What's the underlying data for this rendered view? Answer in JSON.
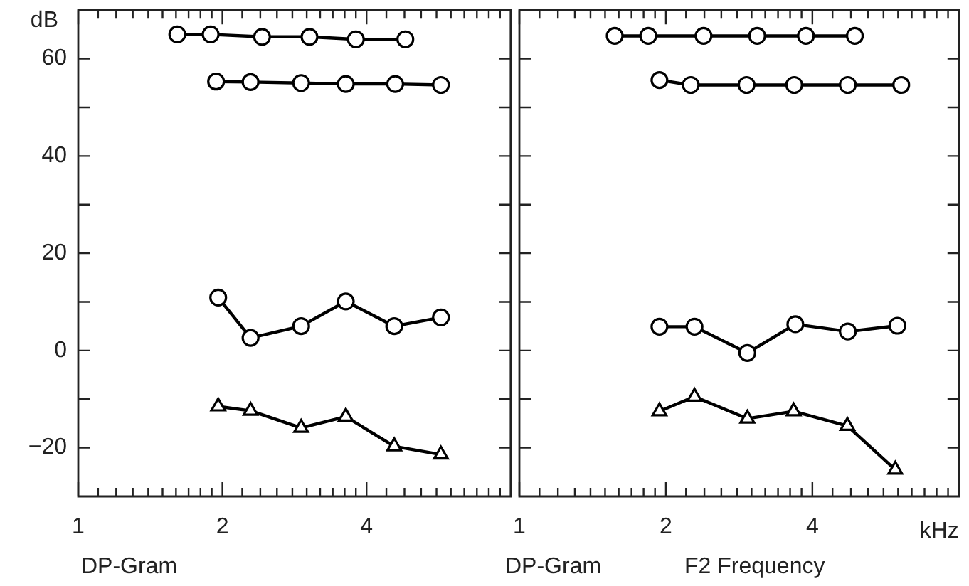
{
  "chart_data": [
    {
      "type": "line",
      "ylabel": "dB",
      "xlabel": "DP-Gram",
      "log": "x",
      "xlim": [
        1,
        8
      ],
      "ylim": [
        -30,
        70
      ],
      "xticks": [
        1,
        {
          "value": 1.1,
          "label": null
        },
        {
          "value": 1.2,
          "label": null
        },
        {
          "value": 1.3,
          "label": null
        },
        {
          "value": 1.4,
          "label": null
        },
        {
          "value": 1.5,
          "label": null
        },
        {
          "value": 1.6,
          "label": null
        },
        {
          "value": 1.7,
          "label": null
        },
        {
          "value": 1.8,
          "label": null
        },
        {
          "value": 1.9,
          "label": null
        },
        2,
        {
          "value": 2.2,
          "label": null
        },
        {
          "value": 2.4,
          "label": null
        },
        {
          "value": 2.6,
          "label": null
        },
        {
          "value": 2.8,
          "label": null
        },
        {
          "value": 3,
          "label": null
        },
        {
          "value": 3.2,
          "label": null
        },
        {
          "value": 3.4,
          "label": null
        },
        {
          "value": 3.6,
          "label": null
        },
        {
          "value": 3.8,
          "label": null
        },
        4,
        {
          "value": 4.4,
          "label": null
        },
        {
          "value": 4.8,
          "label": null
        },
        {
          "value": 5.2,
          "label": null
        },
        {
          "value": 5.6,
          "label": null
        },
        {
          "value": 6,
          "label": null
        },
        {
          "value": 6.4,
          "label": null
        },
        {
          "value": 6.8,
          "label": null
        },
        {
          "value": 7.2,
          "label": null
        },
        {
          "value": 7.6,
          "label": null
        }
      ],
      "yticks": [
        -20,
        {
          "value": -10,
          "label": null
        },
        0,
        {
          "value": 10,
          "label": null
        },
        20,
        {
          "value": 30,
          "label": null
        },
        40,
        {
          "value": 50,
          "label": null
        },
        60
      ],
      "line_style": "solid",
      "series": [
        {
          "color": "#000000",
          "marker": "circle",
          "x": [
            1.61,
            1.89,
            2.42,
            3.04,
            3.8,
            4.82
          ],
          "values": [
            65,
            65,
            64.5,
            64.5,
            64,
            64
          ]
        },
        {
          "color": "#000000",
          "marker": "circle",
          "x": [
            1.94,
            2.29,
            2.92,
            3.62,
            4.59,
            5.72
          ],
          "values": [
            55.3,
            55.2,
            55,
            54.8,
            54.8,
            54.6
          ]
        },
        {
          "color": "#000000",
          "marker": "circle",
          "x": [
            1.96,
            2.29,
            2.92,
            3.62,
            4.57,
            5.72
          ],
          "values": [
            10.9,
            2.6,
            5,
            10.1,
            5,
            6.8
          ]
        },
        {
          "color": "#000000",
          "marker": "triangle",
          "x": [
            1.96,
            2.29,
            2.92,
            3.62,
            4.57,
            5.72
          ],
          "values": [
            -11.5,
            -12.4,
            -15.9,
            -13.6,
            -19.7,
            -21.4
          ]
        }
      ]
    },
    {
      "type": "line",
      "xlabel": "F2 Frequency",
      "annotations": [
        "DP-Gram",
        "kHz"
      ],
      "log": "x",
      "xlim": [
        1,
        8
      ],
      "ylim": [
        -30,
        70
      ],
      "tick_labels": "x",
      "xticks": [
        1,
        {
          "value": 1.1,
          "label": null
        },
        {
          "value": 1.2,
          "label": null
        },
        {
          "value": 1.3,
          "label": null
        },
        {
          "value": 1.4,
          "label": null
        },
        {
          "value": 1.5,
          "label": null
        },
        {
          "value": 1.6,
          "label": null
        },
        {
          "value": 1.7,
          "label": null
        },
        {
          "value": 1.8,
          "label": null
        },
        {
          "value": 1.9,
          "label": null
        },
        2,
        {
          "value": 2.2,
          "label": null
        },
        {
          "value": 2.4,
          "label": null
        },
        {
          "value": 2.6,
          "label": null
        },
        {
          "value": 2.8,
          "label": null
        },
        {
          "value": 3,
          "label": null
        },
        {
          "value": 3.2,
          "label": null
        },
        {
          "value": 3.4,
          "label": null
        },
        {
          "value": 3.6,
          "label": null
        },
        {
          "value": 3.8,
          "label": null
        },
        4,
        {
          "value": 4.4,
          "label": null
        },
        {
          "value": 4.8,
          "label": null
        },
        {
          "value": 5.2,
          "label": null
        },
        {
          "value": 5.6,
          "label": null
        },
        {
          "value": 6,
          "label": null
        },
        {
          "value": 6.4,
          "label": null
        },
        {
          "value": 6.8,
          "label": null
        },
        {
          "value": 7.2,
          "label": null
        },
        {
          "value": 7.6,
          "label": null
        }
      ],
      "yticks": [
        -20,
        {
          "value": -10,
          "label": null
        },
        0,
        {
          "value": 10,
          "label": null
        },
        20,
        {
          "value": 30,
          "label": null
        },
        40,
        {
          "value": 50,
          "label": null
        },
        60
      ],
      "line_style": "solid",
      "series": [
        {
          "color": "#000000",
          "marker": "circle",
          "x": [
            1.57,
            1.84,
            2.39,
            3.08,
            3.88,
            4.89
          ],
          "values": [
            64.7,
            64.7,
            64.7,
            64.7,
            64.7,
            64.7
          ]
        },
        {
          "color": "#000000",
          "marker": "circle",
          "x": [
            1.94,
            2.25,
            2.93,
            3.67,
            4.73,
            6.09
          ],
          "values": [
            55.6,
            54.6,
            54.6,
            54.6,
            54.6,
            54.6
          ]
        },
        {
          "color": "#000000",
          "marker": "circle",
          "x": [
            1.94,
            2.29,
            2.94,
            3.69,
            4.73,
            5.98
          ],
          "values": [
            4.9,
            4.9,
            -0.5,
            5.4,
            3.9,
            5.1
          ]
        },
        {
          "color": "#000000",
          "marker": "triangle",
          "x": [
            1.94,
            2.29,
            2.94,
            3.66,
            4.72,
            5.92
          ],
          "values": [
            -12.5,
            -9.5,
            -14,
            -12.5,
            -15.5,
            -24.5
          ]
        }
      ]
    }
  ]
}
